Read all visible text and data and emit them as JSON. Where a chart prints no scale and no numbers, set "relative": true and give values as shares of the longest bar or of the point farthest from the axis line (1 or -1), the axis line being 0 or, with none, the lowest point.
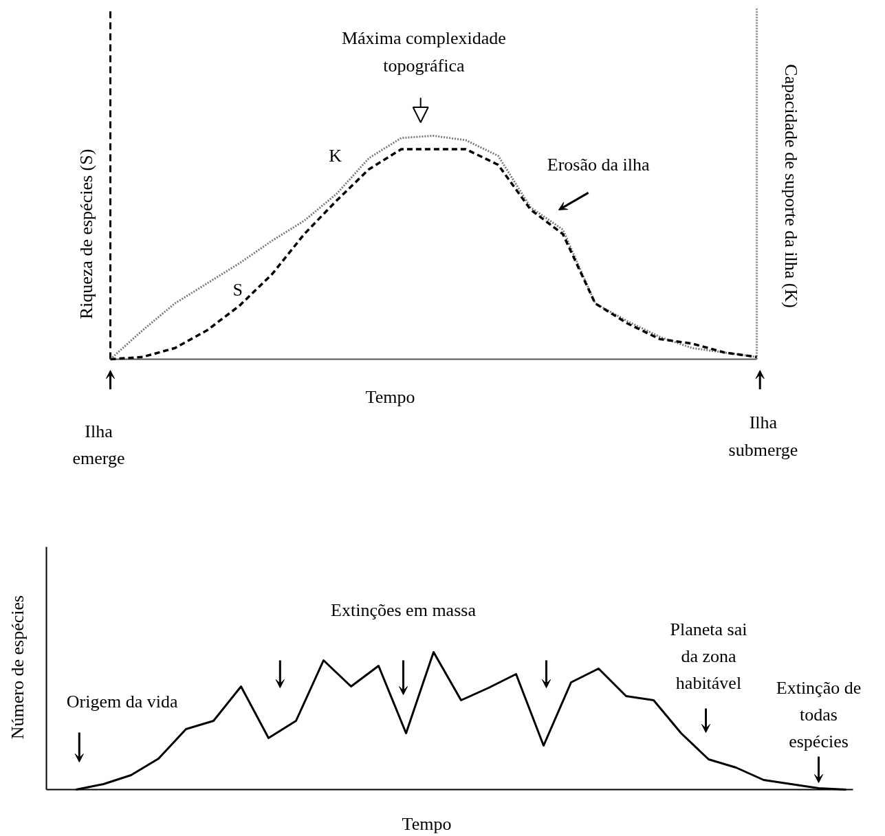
{
  "chart_data": [
    {
      "type": "line",
      "relative": true,
      "ylabel": "Riqueza de espécies (S)",
      "y2label": "Capacidade de suporte da ilha (K)",
      "xlabel": "Tempo",
      "categories": [
        null,
        null,
        null,
        null,
        null,
        null,
        null,
        null,
        null,
        null,
        null,
        null,
        null,
        null,
        null,
        null,
        null,
        null,
        null,
        null,
        null
      ],
      "series": [
        {
          "name": "K",
          "color": "#7a7a7a",
          "line_style": "dotted",
          "values": [
            0,
            0.13,
            0.25,
            0.34,
            0.43,
            0.53,
            0.62,
            0.74,
            0.9,
            0.99,
            1.0,
            0.98,
            0.91,
            0.68,
            0.58,
            0.25,
            0.17,
            0.1,
            0.05,
            0.03,
            0.01
          ]
        },
        {
          "name": "S",
          "color": "#000000",
          "line_style": "dashed",
          "values": [
            0,
            0.01,
            0.05,
            0.13,
            0.24,
            0.38,
            0.56,
            0.71,
            0.85,
            0.94,
            0.94,
            0.94,
            0.87,
            0.67,
            0.56,
            0.25,
            0.16,
            0.09,
            0.07,
            0.03,
            0.01
          ]
        }
      ],
      "annotations": [
        "Máxima complexidade topográfica",
        "Erosão da ilha",
        "Ilha emerge",
        "Ilha submerge"
      ]
    },
    {
      "type": "line",
      "relative": true,
      "ylabel": "Número de espécies",
      "xlabel": "Tempo",
      "categories": [
        null,
        null,
        null,
        null,
        null,
        null,
        null,
        null,
        null,
        null,
        null,
        null,
        null,
        null,
        null,
        null,
        null,
        null,
        null,
        null,
        null,
        null,
        null,
        null,
        null,
        null,
        null,
        null,
        null
      ],
      "series": [
        {
          "color": "#000000",
          "line_style": "solid",
          "values": [
            0,
            0.04,
            0.105,
            0.225,
            0.44,
            0.5,
            0.75,
            0.375,
            0.5,
            0.94,
            0.75,
            0.9,
            0.41,
            1.0,
            0.65,
            0.74,
            0.84,
            0.32,
            0.78,
            0.88,
            0.68,
            0.65,
            0.41,
            0.22,
            0.16,
            0.07,
            0.04,
            0.01,
            0
          ]
        }
      ],
      "annotations": [
        "Origem da vida",
        "Extinções em massa",
        "Planeta sai da zona habitável",
        "Extinção de todas espécies"
      ]
    }
  ]
}
